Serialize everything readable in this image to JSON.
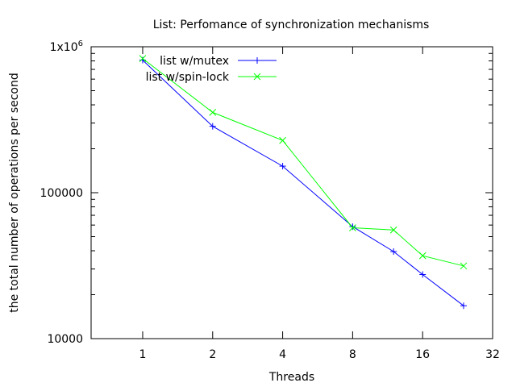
{
  "chart_data": {
    "type": "line",
    "title": "List: Perfomance of synchronization mechanisms",
    "xlabel": "Threads",
    "ylabel": "the total number of operations per second",
    "x_scale": "log2",
    "y_scale": "log10",
    "xlim": [
      0.6,
      32
    ],
    "ylim": [
      10000,
      1000000
    ],
    "x_ticks": [
      {
        "value": 1,
        "label": "1"
      },
      {
        "value": 2,
        "label": "2"
      },
      {
        "value": 4,
        "label": "4"
      },
      {
        "value": 8,
        "label": "8"
      },
      {
        "value": 16,
        "label": "16"
      },
      {
        "value": 32,
        "label": "32"
      }
    ],
    "y_ticks": [
      {
        "value": 10000,
        "label": "10000"
      },
      {
        "value": 100000,
        "label": "100000"
      }
    ],
    "y_top_label": {
      "base": "1x10",
      "exp": "6"
    },
    "legend_position": "top-left",
    "grid": false,
    "series": [
      {
        "name": "list w/mutex",
        "color": "#0000ff",
        "marker": "plus",
        "x": [
          1,
          2,
          4,
          8,
          12,
          16,
          24
        ],
        "y": [
          810000,
          285000,
          152000,
          58500,
          39500,
          27500,
          16800
        ]
      },
      {
        "name": "list w/spin-lock",
        "color": "#00ff00",
        "marker": "cross",
        "x": [
          1,
          2,
          4,
          8,
          12,
          16,
          24
        ],
        "y": [
          830000,
          355000,
          228000,
          57500,
          55500,
          37000,
          31500
        ]
      }
    ]
  }
}
